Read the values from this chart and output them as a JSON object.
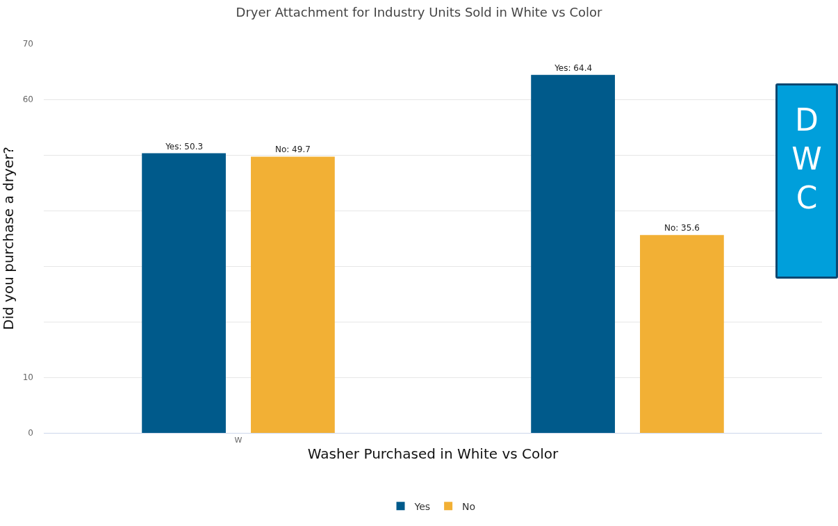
{
  "chart_data": {
    "type": "bar",
    "title": "Dryer Attachment for Industry Units Sold in White vs Color",
    "xlabel": "Washer Purchased in White vs Color",
    "ylabel": "Did you purchase a dryer?",
    "categories": [
      "W",
      null
    ],
    "series": [
      {
        "name": "Yes",
        "color": "#005a8b",
        "values": [
          50.3,
          64.4
        ],
        "value_labels": [
          "Yes: 50.3",
          "Yes: 64.4"
        ]
      },
      {
        "name": "No",
        "color": "#f2b035",
        "values": [
          49.7,
          35.6
        ],
        "value_labels": [
          "No: 49.7",
          "No: 35.6"
        ]
      }
    ],
    "ylim": [
      0,
      70
    ],
    "yticks": [
      0,
      10,
      {
        "value": 20,
        "label": null
      },
      {
        "value": 30,
        "label": null
      },
      {
        "value": 40,
        "label": null
      },
      {
        "value": 50,
        "label": null
      },
      60,
      70
    ],
    "grid": "y",
    "legend": "bottom",
    "annotations": [
      "D",
      "W",
      "C"
    ]
  }
}
